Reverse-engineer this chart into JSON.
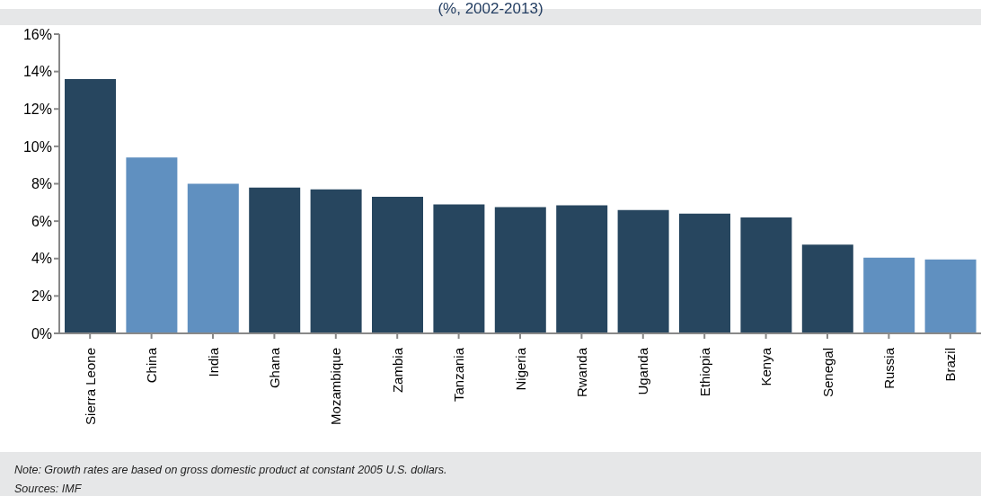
{
  "chart_data": {
    "type": "bar",
    "title": "(%, 2002-2013)",
    "categories": [
      "Sierra Leone",
      "China",
      "India",
      "Ghana",
      "Mozambique",
      "Zambia",
      "Tanzania",
      "Nigeria",
      "Rwanda",
      "Uganda",
      "Ethiopia",
      "Kenya",
      "Senegal",
      "Russia",
      "Brazil"
    ],
    "values": [
      13.6,
      9.4,
      8.0,
      7.8,
      7.7,
      7.3,
      6.9,
      6.75,
      6.85,
      6.6,
      6.4,
      6.2,
      4.75,
      4.05,
      3.95
    ],
    "colors": [
      "#27465f",
      "#6090c0",
      "#6090c0",
      "#27465f",
      "#27465f",
      "#27465f",
      "#27465f",
      "#27465f",
      "#27465f",
      "#27465f",
      "#27465f",
      "#27465f",
      "#27465f",
      "#6090c0",
      "#6090c0"
    ],
    "ylim": [
      0,
      16
    ],
    "yticks": [
      {
        "value": 0,
        "label": "0%"
      },
      {
        "value": 2,
        "label": "2%"
      },
      {
        "value": 4,
        "label": "4%"
      },
      {
        "value": 6,
        "label": "6%"
      },
      {
        "value": 8,
        "label": "8%"
      },
      {
        "value": 10,
        "label": "10%"
      },
      {
        "value": 12,
        "label": "12%"
      },
      {
        "value": 14,
        "label": "14%"
      },
      {
        "value": 16,
        "label": "16%"
      }
    ],
    "grid": false,
    "legend": false,
    "annotations": [
      "Note: Growth rates are based on gross domestic product at constant 2005 U.S. dollars.",
      "Sources: IMF"
    ]
  }
}
